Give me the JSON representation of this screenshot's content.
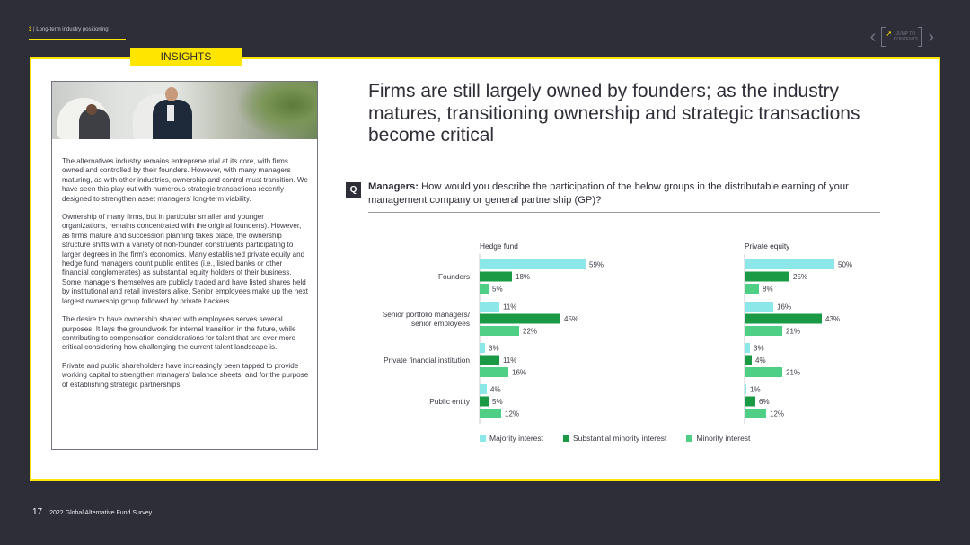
{
  "header": {
    "section_number": "3",
    "section_title": "Long-term industry positioning",
    "nav": {
      "jump_label_line1": "JUMP TO",
      "jump_label_line2": "CONTENTS",
      "prev_icon": "chevron-left-icon",
      "next_icon": "chevron-right-icon"
    }
  },
  "tab_label": "INSIGHTS",
  "sidebar_card": {
    "paragraphs": [
      "The alternatives industry remains entrepreneurial at its core, with firms owned and controlled by their founders. However, with many managers maturing, as with other industries, ownership and control must transition. We have seen this play out with numerous strategic transactions recently designed to strengthen asset managers' long-term viability.",
      "Ownership of many firms, but in particular smaller and younger organizations, remains concentrated with the original founder(s). However, as firms mature and succession planning takes place, the ownership structure shifts with a variety of non-founder constituents participating to larger degrees in the firm's economics. Many established private equity and hedge fund managers count public entities (i.e., listed banks or other financial conglomerates) as substantial equity holders of their business. Some managers themselves are publicly traded and have listed shares held by institutional and retail investors alike. Senior employees make up the next largest ownership group followed by private backers.",
      "The desire to have ownership shared with employees serves several purposes. It lays the groundwork for internal transition in the future, while contributing to compensation considerations for talent that are ever more critical considering how challenging the current talent landscape is.",
      "Private and public shareholders have increasingly been tapped to provide working capital to strengthen managers' balance sheets, and for the purpose of establishing strategic partnerships."
    ]
  },
  "headline": "Firms are still largely owned by founders; as the industry matures, transitioning ownership and strategic transactions become critical",
  "question": {
    "badge": "Q",
    "lead": "Managers:",
    "text": " How would you describe the participation of the below groups in the distributable earning of your management company or general partnership (GP)?"
  },
  "colors": {
    "majority": "#8ce8e8",
    "substantial": "#1a9a45",
    "minority": "#4fcf86",
    "accent": "#ffe600",
    "background": "#2e2e38"
  },
  "chart_data": {
    "type": "bar",
    "orientation": "horizontal",
    "categories": [
      "Founders",
      "Senior portfolio managers/\nsenior employees",
      "Private financial institution",
      "Public entity"
    ],
    "panels": [
      {
        "title": "Hedge fund",
        "series": [
          {
            "name": "Majority interest",
            "values": [
              59,
              11,
              3,
              4
            ],
            "labels": [
              "59%",
              "11%",
              "3%",
              "4%"
            ]
          },
          {
            "name": "Substantial minority interest",
            "values": [
              18,
              45,
              11,
              5
            ],
            "labels": [
              "18%",
              "45%",
              "11%",
              "5%"
            ]
          },
          {
            "name": "Minority interest",
            "values": [
              5,
              22,
              16,
              12
            ],
            "labels": [
              "5%",
              "22%",
              "16%",
              "12%"
            ]
          }
        ]
      },
      {
        "title": "Private equity",
        "series": [
          {
            "name": "Majority interest",
            "values": [
              50,
              16,
              3,
              1
            ],
            "labels": [
              "50%",
              "16%",
              "3%",
              "1%"
            ]
          },
          {
            "name": "Substantial minority interest",
            "values": [
              25,
              43,
              4,
              6
            ],
            "labels": [
              "25%",
              "43%",
              "4%",
              "6%"
            ]
          },
          {
            "name": "Minority interest",
            "values": [
              8,
              21,
              21,
              12
            ],
            "labels": [
              "8%",
              "21%",
              "21%",
              "12%"
            ]
          }
        ]
      }
    ],
    "legend": [
      "Majority interest",
      "Substantial minority interest",
      "Minority interest"
    ],
    "legend_position": "bottom",
    "grid": false
  },
  "footer": {
    "page_number": "17",
    "title": "2022 Global Alternative Fund Survey"
  }
}
